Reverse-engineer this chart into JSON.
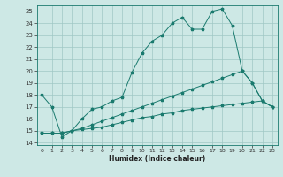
{
  "xlabel": "Humidex (Indice chaleur)",
  "bg_color": "#cde8e5",
  "grid_color": "#a0c8c4",
  "line_color": "#1a7a6e",
  "xlim": [
    -0.5,
    23.5
  ],
  "ylim": [
    13.8,
    25.5
  ],
  "xticks": [
    0,
    1,
    2,
    3,
    4,
    5,
    6,
    7,
    8,
    9,
    10,
    11,
    12,
    13,
    14,
    15,
    16,
    17,
    18,
    19,
    20,
    21,
    22,
    23
  ],
  "yticks": [
    14,
    15,
    16,
    17,
    18,
    19,
    20,
    21,
    22,
    23,
    24,
    25
  ],
  "line1_x": [
    0,
    1,
    2,
    3,
    4,
    5,
    6,
    7,
    8,
    9,
    10,
    11,
    12,
    13,
    14,
    15,
    16,
    17,
    18,
    19,
    20,
    21,
    22,
    23
  ],
  "line1_y": [
    18.0,
    17.0,
    14.5,
    15.0,
    16.0,
    16.8,
    17.0,
    17.5,
    17.8,
    19.9,
    21.5,
    22.5,
    23.0,
    24.0,
    24.5,
    23.5,
    23.5,
    25.0,
    25.2,
    23.8,
    20.0,
    19.0,
    17.5,
    17.0
  ],
  "line2_x": [
    0,
    1,
    2,
    3,
    4,
    5,
    6,
    7,
    8,
    9,
    10,
    11,
    12,
    13,
    14,
    15,
    16,
    17,
    18,
    19,
    20,
    21,
    22,
    23
  ],
  "line2_y": [
    14.8,
    14.8,
    14.8,
    15.0,
    15.1,
    15.2,
    15.3,
    15.5,
    15.7,
    15.9,
    16.1,
    16.2,
    16.4,
    16.5,
    16.7,
    16.8,
    16.9,
    17.0,
    17.1,
    17.2,
    17.3,
    17.4,
    17.5,
    17.0
  ],
  "line3_x": [
    0,
    1,
    2,
    3,
    4,
    5,
    6,
    7,
    8,
    9,
    10,
    11,
    12,
    13,
    14,
    15,
    16,
    17,
    18,
    19,
    20,
    21,
    22,
    23
  ],
  "line3_y": [
    14.8,
    14.8,
    14.8,
    15.0,
    15.2,
    15.5,
    15.8,
    16.1,
    16.4,
    16.7,
    17.0,
    17.3,
    17.6,
    17.9,
    18.2,
    18.5,
    18.8,
    19.1,
    19.4,
    19.7,
    20.0,
    19.0,
    17.5,
    17.0
  ]
}
